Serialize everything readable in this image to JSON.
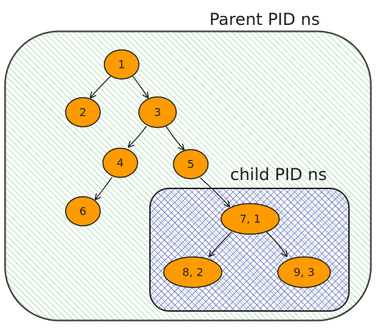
{
  "labels": {
    "parent_ns": "Parent PID ns",
    "child_ns": "child PID ns"
  },
  "nodes": {
    "n1": "1",
    "n2": "2",
    "n3": "3",
    "n4": "4",
    "n5": "5",
    "n6": "6",
    "n7": "7, 1",
    "n8": "8, 2",
    "n9": "9, 3"
  },
  "colors": {
    "parent_fill": "#7ec98a",
    "child_fill": "#6b5fd6",
    "node_fill": "#fd9b00",
    "stroke": "#1e1e1e"
  }
}
